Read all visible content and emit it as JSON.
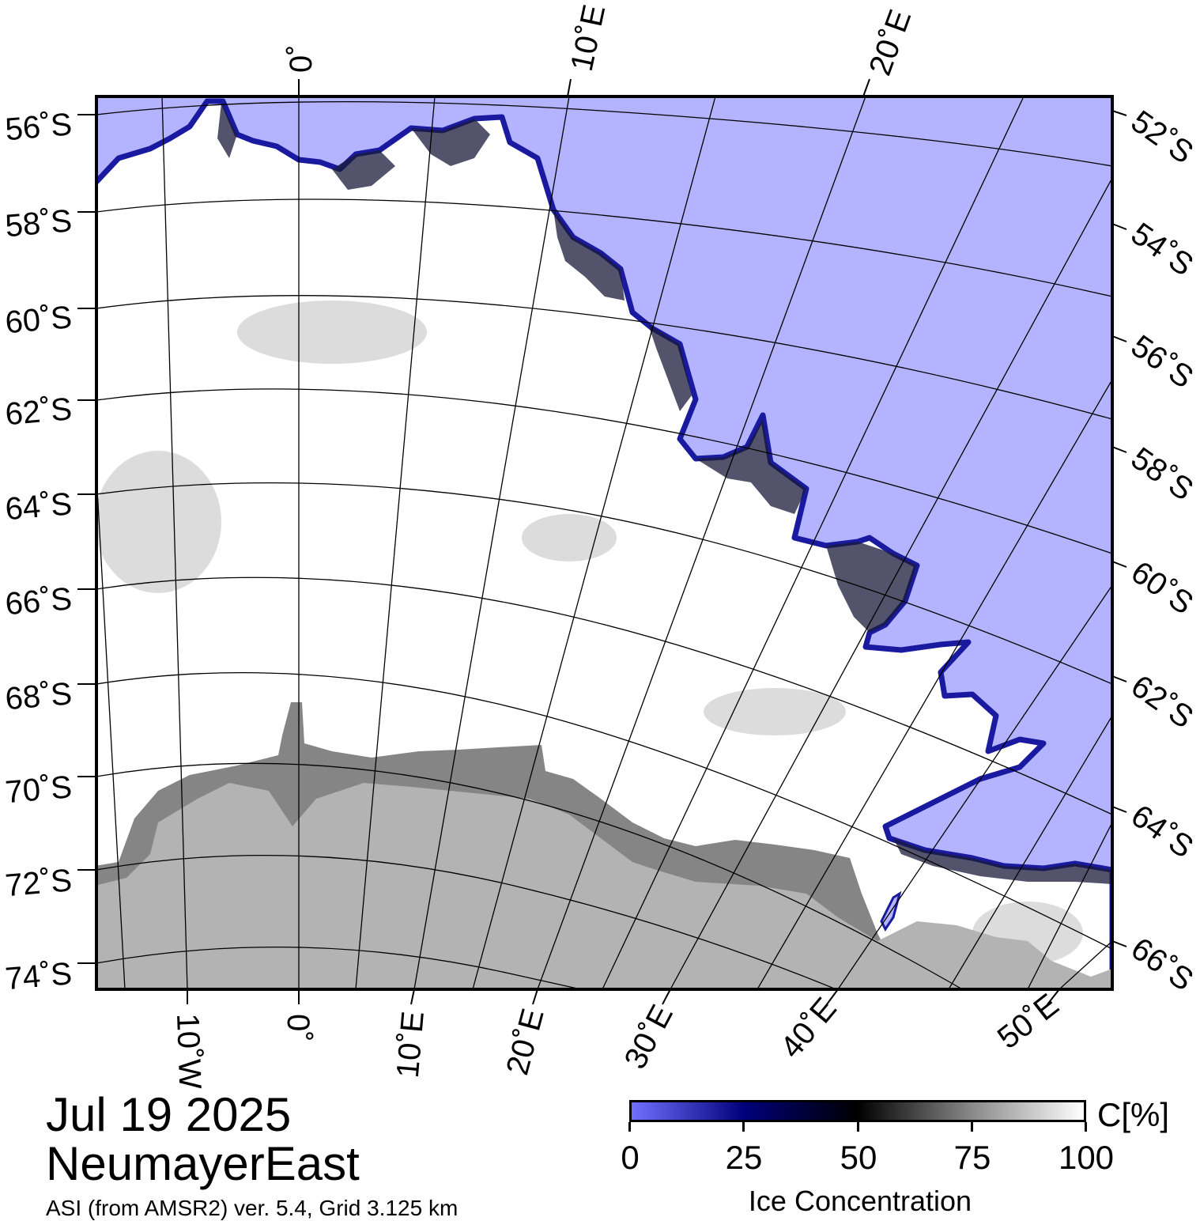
{
  "map": {
    "left_labels": [
      "56˚S",
      "58˚S",
      "60˚S",
      "62˚S",
      "64˚S",
      "66˚S",
      "68˚S",
      "70˚S",
      "72˚S",
      "74˚S"
    ],
    "right_labels": [
      "52˚S",
      "54˚S",
      "56˚S",
      "58˚S",
      "60˚S",
      "62˚S",
      "64˚S",
      "66˚S"
    ],
    "top_labels": [
      "0˚",
      "10˚E",
      "20˚E"
    ],
    "bottom_labels": [
      "10˚W",
      "0˚",
      "10˚E",
      "20˚E",
      "30˚E",
      "40˚E",
      "50˚E"
    ],
    "colors": {
      "ocean": "#b3b3ff",
      "ice": "#ffffff",
      "land": "#b3b3b3",
      "ice_shelf": "#858585",
      "ice_edge": "#1a1aa0"
    }
  },
  "footer": {
    "date": "Jul 19 2025",
    "region": "NeumayerEast",
    "source": "ASI (from AMSR2) ver. 5.4,  Grid 3.125 km"
  },
  "colorbar": {
    "unit": "C[%]",
    "ticks": [
      "0",
      "25",
      "50",
      "75",
      "100"
    ],
    "title": "Ice Concentration",
    "range": [
      0,
      100
    ]
  }
}
